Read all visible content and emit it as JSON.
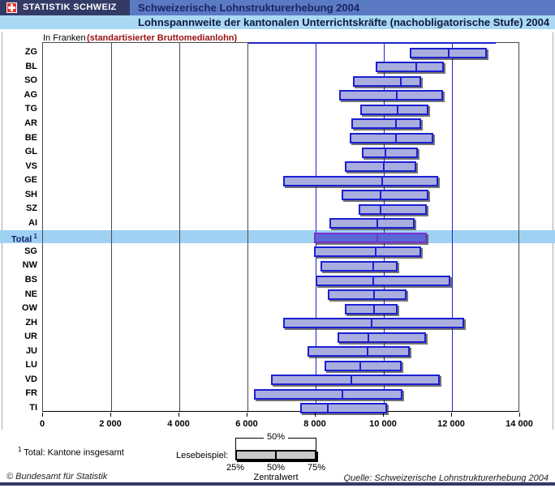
{
  "header": {
    "logo_text": "STATISTIK SCHWEIZ",
    "title": "Schweizerische Lohnstrukturerhebung 2004",
    "subtitle": "Lohnspannweite der kantonalen Unterrichtskräfte (nachobligatorische Stufe) 2004"
  },
  "chart_data": {
    "type": "range-bar",
    "description": "Horizontal 25%-50%-75% wage-range bars per canton, monthly gross median wage in CHF",
    "unit_label": "In Franken",
    "unit_note": "(standartisierter Bruttomedianlohn)",
    "xlim": [
      0,
      14000
    ],
    "grid_blue_from": 8000,
    "xticks": [
      {
        "value": 0,
        "label": "0"
      },
      {
        "value": 2000,
        "label": "2 000"
      },
      {
        "value": 4000,
        "label": "4 000"
      },
      {
        "value": 6000,
        "label": "6 000"
      },
      {
        "value": 8000,
        "label": "8 000"
      },
      {
        "value": 10000,
        "label": "10 000"
      },
      {
        "value": 12000,
        "label": "12 000"
      },
      {
        "value": 14000,
        "label": "14 000"
      }
    ],
    "rows": [
      {
        "label": "ZG",
        "p25": 10750,
        "p50": 11900,
        "p75": 13000,
        "highlight": false
      },
      {
        "label": "BL",
        "p25": 9750,
        "p50": 10950,
        "p75": 11750,
        "highlight": false
      },
      {
        "label": "SO",
        "p25": 9100,
        "p50": 10500,
        "p75": 11100,
        "highlight": false
      },
      {
        "label": "AG",
        "p25": 8700,
        "p50": 10400,
        "p75": 11750,
        "highlight": false
      },
      {
        "label": "TG",
        "p25": 9300,
        "p50": 10400,
        "p75": 11300,
        "highlight": false
      },
      {
        "label": "AR",
        "p25": 9050,
        "p50": 10350,
        "p75": 11100,
        "highlight": false
      },
      {
        "label": "BE",
        "p25": 9000,
        "p50": 10350,
        "p75": 11450,
        "highlight": false
      },
      {
        "label": "GL",
        "p25": 9350,
        "p50": 10050,
        "p75": 11000,
        "highlight": false
      },
      {
        "label": "VS",
        "p25": 8850,
        "p50": 10000,
        "p75": 10950,
        "highlight": false
      },
      {
        "label": "GE",
        "p25": 7050,
        "p50": 9950,
        "p75": 11600,
        "highlight": false
      },
      {
        "label": "SH",
        "p25": 8750,
        "p50": 9900,
        "p75": 11300,
        "highlight": false
      },
      {
        "label": "SZ",
        "p25": 9250,
        "p50": 9900,
        "p75": 11250,
        "highlight": false
      },
      {
        "label": "AI",
        "p25": 8400,
        "p50": 9800,
        "p75": 10900,
        "highlight": false
      },
      {
        "label": "Total",
        "sup": "1",
        "p25": 7950,
        "p50": 9800,
        "p75": 11250,
        "highlight": true
      },
      {
        "label": "SG",
        "p25": 7950,
        "p50": 9750,
        "p75": 11100,
        "highlight": false
      },
      {
        "label": "NW",
        "p25": 8150,
        "p50": 9700,
        "p75": 10400,
        "highlight": false
      },
      {
        "label": "BS",
        "p25": 8000,
        "p50": 9700,
        "p75": 11950,
        "highlight": false
      },
      {
        "label": "NE",
        "p25": 8350,
        "p50": 9700,
        "p75": 10650,
        "highlight": false
      },
      {
        "label": "OW",
        "p25": 8850,
        "p50": 9700,
        "p75": 10400,
        "highlight": false
      },
      {
        "label": "ZH",
        "p25": 7050,
        "p50": 9650,
        "p75": 12350,
        "highlight": false
      },
      {
        "label": "UR",
        "p25": 8650,
        "p50": 9550,
        "p75": 11250,
        "highlight": false
      },
      {
        "label": "JU",
        "p25": 7750,
        "p50": 9500,
        "p75": 10750,
        "highlight": false
      },
      {
        "label": "LU",
        "p25": 8250,
        "p50": 9300,
        "p75": 10500,
        "highlight": false
      },
      {
        "label": "VD",
        "p25": 6700,
        "p50": 9050,
        "p75": 11650,
        "highlight": false
      },
      {
        "label": "FR",
        "p25": 6200,
        "p50": 8800,
        "p75": 10550,
        "highlight": false
      },
      {
        "label": "TI",
        "p25": 7550,
        "p50": 8350,
        "p75": 10100,
        "highlight": false
      }
    ]
  },
  "footnote": {
    "sup": "1",
    "text": " Total: Kantone insgesamt"
  },
  "legend": {
    "label": "Lesebeispiel:",
    "bracket_label": "50%",
    "p25_label": "25%",
    "p50_label": "50%",
    "p75_label": "75%",
    "median_label": "Zentralwert"
  },
  "footer": {
    "left": "© Bundesamt für Statistik",
    "right": "Quelle: Schweizerische Lohnstrukturerhebung 2004"
  },
  "colors": {
    "header_navy": "#333a66",
    "header_blue": "#5b7ac4",
    "header_light_blue": "#a8d8f4",
    "bar_fill": "#a9aede",
    "bar_border": "#1c1fd1",
    "total_bar_fill": "#5a68d6",
    "total_bar_border": "#7a30d2",
    "highlight_band": "#9fd1f3",
    "grid_gray": "#4a4a4a",
    "grid_blue": "#2323cc",
    "note_red": "#9b1212"
  }
}
